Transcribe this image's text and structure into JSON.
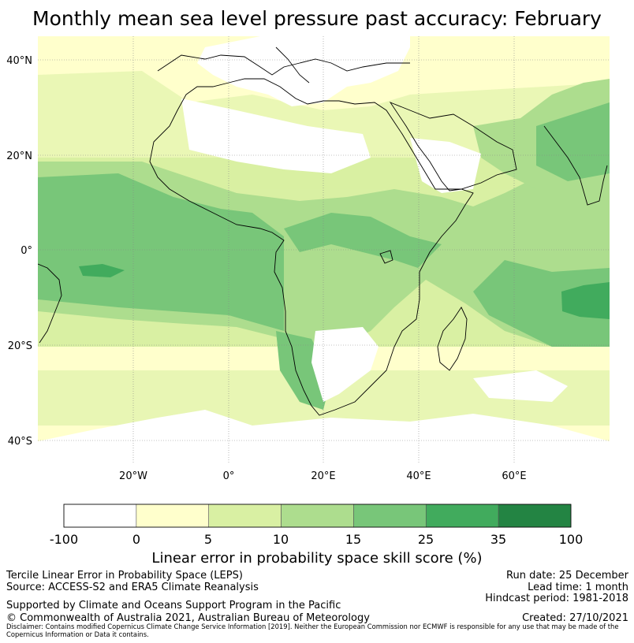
{
  "title": "Monthly mean sea level pressure past accuracy: February",
  "map": {
    "lat_ticks": [
      "40°N",
      "20°N",
      "0°",
      "20°S",
      "40°S"
    ],
    "lon_ticks": [
      "20°W",
      "0°",
      "20°E",
      "40°E",
      "60°E"
    ],
    "extent": {
      "lon_min": -40,
      "lon_max": 80,
      "lat_min": -45,
      "lat_max": 45
    }
  },
  "legend": {
    "labels": [
      "-100",
      "0",
      "5",
      "10",
      "15",
      "25",
      "35",
      "100"
    ],
    "colors": [
      "#ffffff",
      "#ffffcc",
      "#d9f0a3",
      "#addd8e",
      "#78c679",
      "#41ab5d",
      "#238443"
    ],
    "title": "Linear error in probability space skill score (%)"
  },
  "info": {
    "line1": "Tercile Linear Error in Probability Space (LEPS)",
    "line2": "Source: ACCESS-S2 and ERA5 Climate Reanalysis",
    "support": "Supported by Climate and Oceans Support Program in the Pacific",
    "copyright": "© Commonwealth of Australia 2021, Australian Bureau of Meteorology",
    "disclaimer": "Disclaimer: Contains modified Copernicus Climate Change Service Information [2019]. Neither the European Commission nor ECMWF is responsible for any use that may be made of the Copernicus Information or Data it contains.",
    "run_date": "Run date: 25 December",
    "lead_time": "Lead time: 1 month",
    "hindcast": "Hindcast period: 1981-2018",
    "created": "Created: 27/10/2021"
  }
}
